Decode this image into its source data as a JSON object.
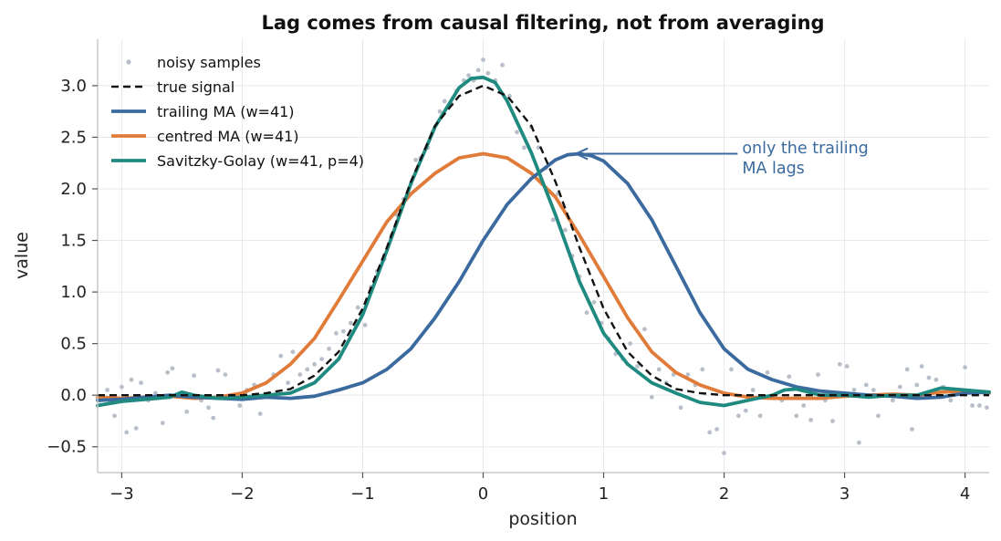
{
  "chart_data": {
    "type": "line",
    "title": "Lag comes from causal filtering, not from averaging",
    "xlabel": "position",
    "ylabel": "value",
    "xlim": [
      -3.2,
      4.2
    ],
    "ylim": [
      -0.75,
      3.45
    ],
    "xticks": [
      -3,
      -2,
      -1,
      0,
      1,
      2,
      3,
      4
    ],
    "xtick_labels": [
      "−3",
      "−2",
      "−1",
      "0",
      "1",
      "2",
      "3",
      "4"
    ],
    "yticks": [
      -0.5,
      0.0,
      0.5,
      1.0,
      1.5,
      2.0,
      2.5,
      3.0
    ],
    "ytick_labels": [
      "−0.5",
      "0.0",
      "0.5",
      "1.0",
      "1.5",
      "2.0",
      "2.5",
      "3.0"
    ],
    "grid": true,
    "legend_position": "top-left",
    "series": [
      {
        "name": "noisy samples",
        "kind": "scatter",
        "color": "#b8bfc9",
        "points": [
          [
            -3.18,
            -0.05
          ],
          [
            -3.12,
            0.05
          ],
          [
            -3.06,
            -0.2
          ],
          [
            -3.0,
            0.08
          ],
          [
            -2.96,
            -0.36
          ],
          [
            -2.92,
            0.15
          ],
          [
            -2.88,
            -0.32
          ],
          [
            -2.84,
            0.12
          ],
          [
            -2.78,
            -0.05
          ],
          [
            -2.72,
            0.02
          ],
          [
            -2.66,
            -0.27
          ],
          [
            -2.62,
            0.22
          ],
          [
            -2.58,
            0.26
          ],
          [
            -2.52,
            0.0
          ],
          [
            -2.46,
            -0.16
          ],
          [
            -2.4,
            0.19
          ],
          [
            -2.34,
            -0.05
          ],
          [
            -2.28,
            -0.12
          ],
          [
            -2.24,
            -0.22
          ],
          [
            -2.2,
            0.24
          ],
          [
            -2.14,
            0.2
          ],
          [
            -2.08,
            -0.02
          ],
          [
            -2.02,
            -0.1
          ],
          [
            -1.96,
            0.05
          ],
          [
            -1.9,
            0.1
          ],
          [
            -1.85,
            -0.18
          ],
          [
            -1.8,
            0.0
          ],
          [
            -1.74,
            0.2
          ],
          [
            -1.68,
            0.38
          ],
          [
            -1.62,
            0.12
          ],
          [
            -1.58,
            0.42
          ],
          [
            -1.52,
            0.2
          ],
          [
            -1.46,
            0.25
          ],
          [
            -1.4,
            0.3
          ],
          [
            -1.34,
            0.35
          ],
          [
            -1.28,
            0.45
          ],
          [
            -1.22,
            0.6
          ],
          [
            -1.16,
            0.62
          ],
          [
            -1.1,
            0.7
          ],
          [
            -1.04,
            0.85
          ],
          [
            -0.98,
            0.68
          ],
          [
            -0.93,
            1.05
          ],
          [
            -0.88,
            1.2
          ],
          [
            -0.82,
            1.32
          ],
          [
            -0.76,
            1.55
          ],
          [
            -0.72,
            1.75
          ],
          [
            -0.66,
            1.9
          ],
          [
            -0.6,
            2.05
          ],
          [
            -0.56,
            2.28
          ],
          [
            -0.52,
            2.3
          ],
          [
            -0.46,
            2.4
          ],
          [
            -0.42,
            2.55
          ],
          [
            -0.36,
            2.75
          ],
          [
            -0.32,
            2.85
          ],
          [
            -0.26,
            2.82
          ],
          [
            -0.22,
            2.95
          ],
          [
            -0.16,
            3.05
          ],
          [
            -0.12,
            3.1
          ],
          [
            -0.08,
            3.05
          ],
          [
            -0.04,
            3.15
          ],
          [
            0.0,
            3.25
          ],
          [
            0.04,
            3.12
          ],
          [
            0.1,
            3.05
          ],
          [
            0.16,
            3.2
          ],
          [
            0.22,
            2.9
          ],
          [
            0.28,
            2.55
          ],
          [
            0.34,
            2.4
          ],
          [
            0.4,
            2.6
          ],
          [
            0.46,
            2.4
          ],
          [
            0.52,
            2.2
          ],
          [
            0.58,
            1.7
          ],
          [
            0.62,
            1.95
          ],
          [
            0.68,
            1.6
          ],
          [
            0.74,
            1.35
          ],
          [
            0.8,
            1.15
          ],
          [
            0.86,
            0.8
          ],
          [
            0.92,
            0.9
          ],
          [
            0.98,
            0.7
          ],
          [
            1.04,
            0.55
          ],
          [
            1.1,
            0.4
          ],
          [
            1.16,
            0.35
          ],
          [
            1.22,
            0.5
          ],
          [
            1.28,
            0.28
          ],
          [
            1.34,
            0.64
          ],
          [
            1.4,
            -0.02
          ],
          [
            1.46,
            0.25
          ],
          [
            1.52,
            0.12
          ],
          [
            1.58,
            0.2
          ],
          [
            1.64,
            -0.12
          ],
          [
            1.7,
            0.2
          ],
          [
            1.76,
            0.1
          ],
          [
            1.82,
            0.25
          ],
          [
            1.88,
            -0.36
          ],
          [
            1.94,
            -0.33
          ],
          [
            2.0,
            -0.56
          ],
          [
            2.06,
            0.25
          ],
          [
            2.12,
            -0.2
          ],
          [
            2.18,
            -0.15
          ],
          [
            2.24,
            0.05
          ],
          [
            2.3,
            -0.2
          ],
          [
            2.36,
            0.22
          ],
          [
            2.42,
            0.0
          ],
          [
            2.48,
            -0.05
          ],
          [
            2.54,
            0.18
          ],
          [
            2.6,
            -0.2
          ],
          [
            2.66,
            -0.1
          ],
          [
            2.72,
            -0.24
          ],
          [
            2.78,
            0.2
          ],
          [
            2.84,
            -0.05
          ],
          [
            2.9,
            -0.25
          ],
          [
            2.96,
            0.3
          ],
          [
            3.02,
            0.28
          ],
          [
            3.08,
            0.05
          ],
          [
            3.12,
            -0.46
          ],
          [
            3.18,
            0.1
          ],
          [
            3.24,
            0.05
          ],
          [
            3.28,
            -0.2
          ],
          [
            3.34,
            0.0
          ],
          [
            3.4,
            -0.05
          ],
          [
            3.46,
            0.08
          ],
          [
            3.52,
            0.25
          ],
          [
            3.56,
            -0.33
          ],
          [
            3.6,
            0.1
          ],
          [
            3.64,
            0.28
          ],
          [
            3.7,
            0.17
          ],
          [
            3.76,
            0.15
          ],
          [
            3.82,
            0.08
          ],
          [
            3.88,
            -0.05
          ],
          [
            3.94,
            0.05
          ],
          [
            4.0,
            0.27
          ],
          [
            4.06,
            -0.1
          ],
          [
            4.12,
            -0.1
          ],
          [
            4.18,
            -0.12
          ]
        ]
      },
      {
        "name": "true signal",
        "kind": "line",
        "color": "#111111",
        "dashed": true,
        "points": [
          [
            -3.2,
            0.0
          ],
          [
            -2.5,
            0.0
          ],
          [
            -2.0,
            0.0
          ],
          [
            -1.8,
            0.02
          ],
          [
            -1.6,
            0.06
          ],
          [
            -1.4,
            0.19
          ],
          [
            -1.2,
            0.42
          ],
          [
            -1.0,
            0.84
          ],
          [
            -0.8,
            1.43
          ],
          [
            -0.6,
            2.07
          ],
          [
            -0.4,
            2.61
          ],
          [
            -0.2,
            2.9
          ],
          [
            0.0,
            3.0
          ],
          [
            0.2,
            2.9
          ],
          [
            0.4,
            2.61
          ],
          [
            0.6,
            2.07
          ],
          [
            0.8,
            1.43
          ],
          [
            1.0,
            0.84
          ],
          [
            1.2,
            0.42
          ],
          [
            1.4,
            0.19
          ],
          [
            1.6,
            0.06
          ],
          [
            1.8,
            0.02
          ],
          [
            2.0,
            0.0
          ],
          [
            2.5,
            0.0
          ],
          [
            3.0,
            0.0
          ],
          [
            3.5,
            0.0
          ],
          [
            4.2,
            0.0
          ]
        ]
      },
      {
        "name": "trailing MA (w=41)",
        "kind": "line",
        "color": "#3a6a9e",
        "points": [
          [
            -3.2,
            -0.05
          ],
          [
            -3.0,
            -0.04
          ],
          [
            -2.8,
            -0.02
          ],
          [
            -2.6,
            0.0
          ],
          [
            -2.4,
            -0.02
          ],
          [
            -2.2,
            -0.03
          ],
          [
            -2.0,
            -0.04
          ],
          [
            -1.8,
            -0.02
          ],
          [
            -1.6,
            -0.03
          ],
          [
            -1.4,
            -0.01
          ],
          [
            -1.2,
            0.05
          ],
          [
            -1.0,
            0.12
          ],
          [
            -0.8,
            0.25
          ],
          [
            -0.6,
            0.45
          ],
          [
            -0.4,
            0.75
          ],
          [
            -0.2,
            1.1
          ],
          [
            0.0,
            1.5
          ],
          [
            0.2,
            1.85
          ],
          [
            0.4,
            2.1
          ],
          [
            0.6,
            2.28
          ],
          [
            0.7,
            2.33
          ],
          [
            0.8,
            2.34
          ],
          [
            0.9,
            2.32
          ],
          [
            1.0,
            2.27
          ],
          [
            1.2,
            2.05
          ],
          [
            1.4,
            1.7
          ],
          [
            1.6,
            1.25
          ],
          [
            1.8,
            0.8
          ],
          [
            2.0,
            0.45
          ],
          [
            2.2,
            0.25
          ],
          [
            2.4,
            0.15
          ],
          [
            2.6,
            0.08
          ],
          [
            2.8,
            0.04
          ],
          [
            3.0,
            0.02
          ],
          [
            3.2,
            0.0
          ],
          [
            3.4,
            -0.01
          ],
          [
            3.6,
            -0.03
          ],
          [
            3.8,
            -0.02
          ],
          [
            4.0,
            0.02
          ],
          [
            4.2,
            0.03
          ]
        ]
      },
      {
        "name": "centred MA (w=41)",
        "kind": "line",
        "color": "#e07b39",
        "points": [
          [
            -3.2,
            -0.02
          ],
          [
            -3.0,
            -0.03
          ],
          [
            -2.8,
            -0.02
          ],
          [
            -2.6,
            -0.01
          ],
          [
            -2.4,
            -0.03
          ],
          [
            -2.2,
            -0.02
          ],
          [
            -2.0,
            0.02
          ],
          [
            -1.8,
            0.12
          ],
          [
            -1.6,
            0.3
          ],
          [
            -1.4,
            0.55
          ],
          [
            -1.2,
            0.92
          ],
          [
            -1.0,
            1.3
          ],
          [
            -0.8,
            1.68
          ],
          [
            -0.6,
            1.95
          ],
          [
            -0.4,
            2.15
          ],
          [
            -0.2,
            2.3
          ],
          [
            0.0,
            2.34
          ],
          [
            0.2,
            2.3
          ],
          [
            0.4,
            2.15
          ],
          [
            0.6,
            1.92
          ],
          [
            0.8,
            1.55
          ],
          [
            1.0,
            1.15
          ],
          [
            1.2,
            0.75
          ],
          [
            1.4,
            0.42
          ],
          [
            1.6,
            0.22
          ],
          [
            1.8,
            0.1
          ],
          [
            2.0,
            0.02
          ],
          [
            2.2,
            -0.02
          ],
          [
            2.4,
            -0.03
          ],
          [
            2.6,
            -0.03
          ],
          [
            2.8,
            -0.03
          ],
          [
            3.0,
            -0.01
          ],
          [
            3.2,
            0.0
          ],
          [
            3.4,
            0.01
          ],
          [
            3.6,
            0.0
          ],
          [
            3.8,
            0.03
          ],
          [
            4.0,
            0.04
          ],
          [
            4.2,
            0.02
          ]
        ]
      },
      {
        "name": "Savitzky-Golay (w=41, p=4)",
        "kind": "line",
        "color": "#1f8a7f",
        "points": [
          [
            -3.2,
            -0.1
          ],
          [
            -3.0,
            -0.06
          ],
          [
            -2.8,
            -0.04
          ],
          [
            -2.6,
            -0.02
          ],
          [
            -2.5,
            0.03
          ],
          [
            -2.4,
            0.0
          ],
          [
            -2.2,
            -0.03
          ],
          [
            -2.0,
            -0.02
          ],
          [
            -1.8,
            0.0
          ],
          [
            -1.6,
            0.02
          ],
          [
            -1.4,
            0.12
          ],
          [
            -1.2,
            0.35
          ],
          [
            -1.0,
            0.78
          ],
          [
            -0.8,
            1.4
          ],
          [
            -0.6,
            2.05
          ],
          [
            -0.4,
            2.6
          ],
          [
            -0.2,
            2.98
          ],
          [
            -0.1,
            3.07
          ],
          [
            0.0,
            3.08
          ],
          [
            0.1,
            3.03
          ],
          [
            0.2,
            2.85
          ],
          [
            0.4,
            2.35
          ],
          [
            0.6,
            1.75
          ],
          [
            0.8,
            1.1
          ],
          [
            1.0,
            0.6
          ],
          [
            1.2,
            0.3
          ],
          [
            1.4,
            0.12
          ],
          [
            1.6,
            0.02
          ],
          [
            1.8,
            -0.07
          ],
          [
            2.0,
            -0.1
          ],
          [
            2.2,
            -0.05
          ],
          [
            2.4,
            0.0
          ],
          [
            2.5,
            0.05
          ],
          [
            2.6,
            0.06
          ],
          [
            2.8,
            0.0
          ],
          [
            3.0,
            0.0
          ],
          [
            3.2,
            -0.02
          ],
          [
            3.4,
            0.0
          ],
          [
            3.6,
            0.0
          ],
          [
            3.8,
            0.07
          ],
          [
            4.0,
            0.05
          ],
          [
            4.2,
            0.03
          ]
        ]
      }
    ],
    "annotation": {
      "text_lines": [
        "only the trailing",
        "MA lags"
      ],
      "color": "#3a6a9e",
      "text_at": [
        2.15,
        2.3
      ],
      "arrow_to": [
        0.77,
        2.34
      ]
    }
  }
}
